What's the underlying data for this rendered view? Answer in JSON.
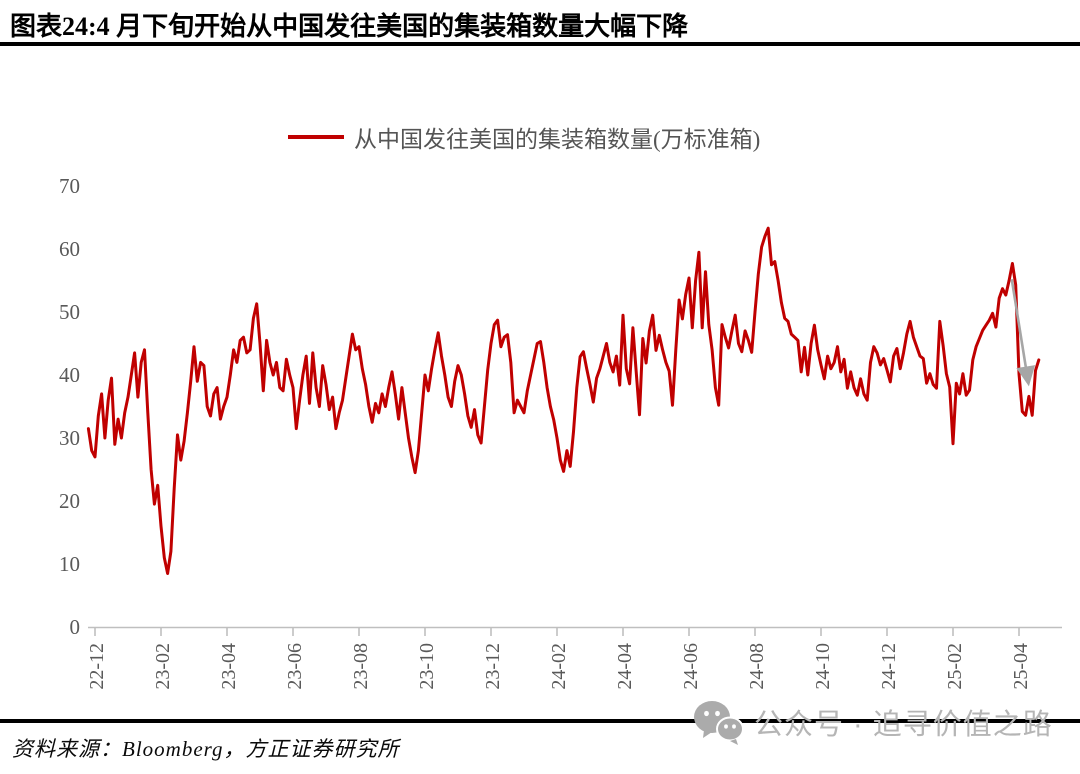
{
  "title": "图表24:4 月下旬开始从中国发往美国的集装箱数量大幅下降",
  "legend": {
    "label": "从中国发往美国的集装箱数量(万标准箱)"
  },
  "source": "资料来源：Bloomberg，方正证券研究所",
  "watermark": {
    "icon": "wechat-icon",
    "text": "公众号 · 追寻价值之路"
  },
  "colors": {
    "line": "#C00000",
    "arrow": "#A6A6A6",
    "axis": "#BFBFBF",
    "tick_label": "#595959",
    "watermark": "#b5b5b5"
  },
  "chart_data": {
    "type": "line",
    "title": "从中国发往美国的集装箱数量(万标准箱)",
    "series_name": "从中国发往美国的集装箱数量(万标准箱)",
    "xlabel": "",
    "ylabel": "",
    "grid": false,
    "legend_position": "top-center",
    "ylim": [
      0,
      70
    ],
    "yticks": [
      0,
      10,
      20,
      30,
      40,
      50,
      60,
      70
    ],
    "x_tick_labels": [
      "22-12",
      "23-02",
      "23-04",
      "23-06",
      "23-08",
      "23-10",
      "23-12",
      "24-02",
      "24-04",
      "24-06",
      "24-08",
      "24-10",
      "24-12",
      "25-02",
      "25-04"
    ],
    "x_tick_months": [
      0,
      2,
      4,
      6,
      8,
      10,
      12,
      14,
      16,
      18,
      20,
      22,
      24,
      26,
      28
    ],
    "x_unit": "months since 2022-12",
    "x_start": -0.2,
    "x_step": 0.1,
    "values": [
      31.5,
      28.0,
      27.0,
      33.5,
      37.0,
      30.0,
      36.0,
      39.5,
      29.0,
      33.0,
      30.0,
      34.0,
      36.5,
      40.0,
      43.5,
      36.5,
      42.0,
      44.0,
      34.0,
      25.0,
      19.5,
      22.5,
      16.0,
      11.0,
      8.5,
      12.0,
      22.0,
      30.5,
      26.5,
      29.5,
      34.0,
      39.0,
      44.5,
      39.0,
      42.0,
      41.5,
      35.0,
      33.5,
      37.0,
      38.0,
      33.0,
      35.0,
      36.5,
      40.0,
      44.0,
      42.0,
      45.5,
      46.0,
      43.5,
      44.0,
      49.0,
      51.3,
      45.0,
      37.5,
      45.5,
      42.0,
      40.0,
      42.0,
      38.0,
      37.5,
      42.5,
      40.0,
      38.0,
      31.5,
      36.0,
      40.0,
      43.0,
      35.5,
      43.5,
      38.0,
      35.0,
      41.5,
      38.5,
      34.5,
      36.5,
      31.5,
      34.0,
      36.0,
      39.5,
      43.0,
      46.5,
      44.0,
      44.5,
      41.0,
      38.5,
      35.0,
      32.5,
      35.5,
      34.0,
      37.0,
      35.0,
      38.0,
      40.5,
      37.0,
      33.0,
      38.0,
      34.0,
      30.0,
      27.0,
      24.5,
      28.0,
      34.0,
      40.0,
      37.5,
      41.0,
      44.0,
      46.7,
      43.0,
      40.0,
      36.5,
      35.0,
      39.0,
      41.5,
      40.0,
      37.0,
      33.5,
      31.7,
      34.5,
      30.5,
      29.2,
      35.0,
      40.8,
      45.0,
      48.0,
      48.7,
      44.5,
      46.0,
      46.4,
      42.0,
      34.0,
      36.0,
      35.0,
      34.0,
      37.5,
      40.0,
      42.5,
      45.0,
      45.3,
      42.0,
      38.0,
      35.0,
      32.9,
      30.0,
      26.5,
      24.7,
      28.0,
      25.5,
      31.0,
      38.0,
      42.9,
      43.7,
      41.0,
      38.5,
      35.7,
      39.5,
      41.0,
      43.0,
      45.0,
      42.0,
      40.5,
      43.0,
      38.4,
      49.5,
      41.0,
      38.6,
      47.5,
      40.5,
      33.7,
      45.8,
      41.9,
      47.0,
      49.5,
      43.9,
      46.3,
      44.0,
      42.0,
      40.6,
      35.2,
      44.0,
      51.9,
      48.9,
      52.8,
      55.4,
      47.5,
      55.0,
      59.5,
      47.5,
      56.4,
      48.0,
      44.0,
      38.0,
      35.2,
      48.0,
      46.0,
      44.3,
      47.0,
      49.5,
      45.0,
      43.7,
      47.0,
      45.5,
      43.6,
      50.0,
      56.0,
      60.3,
      62.0,
      63.3,
      57.5,
      58.0,
      55.0,
      51.5,
      49.0,
      48.5,
      46.5,
      46.0,
      45.5,
      40.5,
      44.4,
      40.0,
      45.0,
      47.9,
      44.0,
      41.6,
      39.4,
      43.0,
      41.0,
      42.0,
      44.5,
      40.5,
      42.5,
      37.9,
      40.5,
      38.0,
      36.8,
      39.4,
      37.0,
      36.0,
      42.0,
      44.5,
      43.5,
      41.6,
      42.6,
      40.8,
      38.9,
      43.0,
      44.2,
      41.0,
      43.5,
      46.5,
      48.5,
      46.0,
      44.5,
      43.0,
      42.6,
      38.7,
      40.2,
      38.5,
      37.9,
      48.5,
      44.7,
      40.2,
      38.1,
      29.1,
      38.7,
      37.0,
      40.2,
      36.8,
      37.6,
      42.4,
      44.5,
      45.8,
      47.1,
      47.9,
      48.7,
      49.8,
      47.6,
      52.2,
      53.7,
      52.7,
      55.0,
      57.7,
      54.3,
      40.2,
      34.2,
      33.6,
      36.6,
      33.6,
      40.7,
      42.4
    ],
    "annotation_arrow": {
      "from": [
        27.78,
        55.2
      ],
      "to": [
        28.3,
        38.2
      ]
    }
  }
}
